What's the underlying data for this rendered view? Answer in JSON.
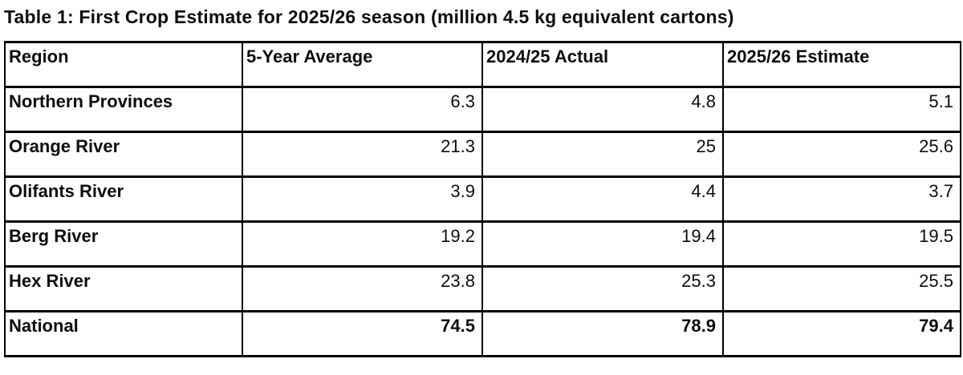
{
  "title": "Table 1: First Crop Estimate for 2025/26 season (million 4.5 kg equivalent cartons)",
  "colors": {
    "text": "#0d0d0d",
    "border": "#000000",
    "background": "#ffffff"
  },
  "table": {
    "columns": [
      "Region",
      "5-Year Average",
      "2024/25 Actual",
      "2025/26 Estimate"
    ],
    "rows": [
      {
        "region": "Northern Provinces",
        "values": [
          "6.3",
          "4.8",
          "5.1"
        ]
      },
      {
        "region": "Orange River",
        "values": [
          "21.3",
          "25",
          "25.6"
        ]
      },
      {
        "region": "Olifants River",
        "values": [
          "3.9",
          "4.4",
          "3.7"
        ]
      },
      {
        "region": "Berg River",
        "values": [
          "19.2",
          "19.4",
          "19.5"
        ]
      },
      {
        "region": "Hex River",
        "values": [
          "23.8",
          "25.3",
          "25.5"
        ]
      },
      {
        "region": "National",
        "values": [
          "74.5",
          "78.9",
          "79.4"
        ]
      }
    ],
    "total_row_label": "National"
  },
  "chart_data": {
    "type": "table",
    "title": "Table 1: First Crop Estimate for 2025/26 season (million 4.5 kg equivalent cartons)",
    "categories": [
      "Northern Provinces",
      "Orange River",
      "Olifants River",
      "Berg River",
      "Hex River",
      "National"
    ],
    "series": [
      {
        "name": "5-Year Average",
        "values": [
          6.3,
          21.3,
          3.9,
          19.2,
          23.8,
          74.5
        ]
      },
      {
        "name": "2024/25 Actual",
        "values": [
          4.8,
          25,
          4.4,
          19.4,
          25.3,
          78.9
        ]
      },
      {
        "name": "2025/26 Estimate",
        "values": [
          5.1,
          25.6,
          3.7,
          19.5,
          25.5,
          79.4
        ]
      }
    ]
  }
}
